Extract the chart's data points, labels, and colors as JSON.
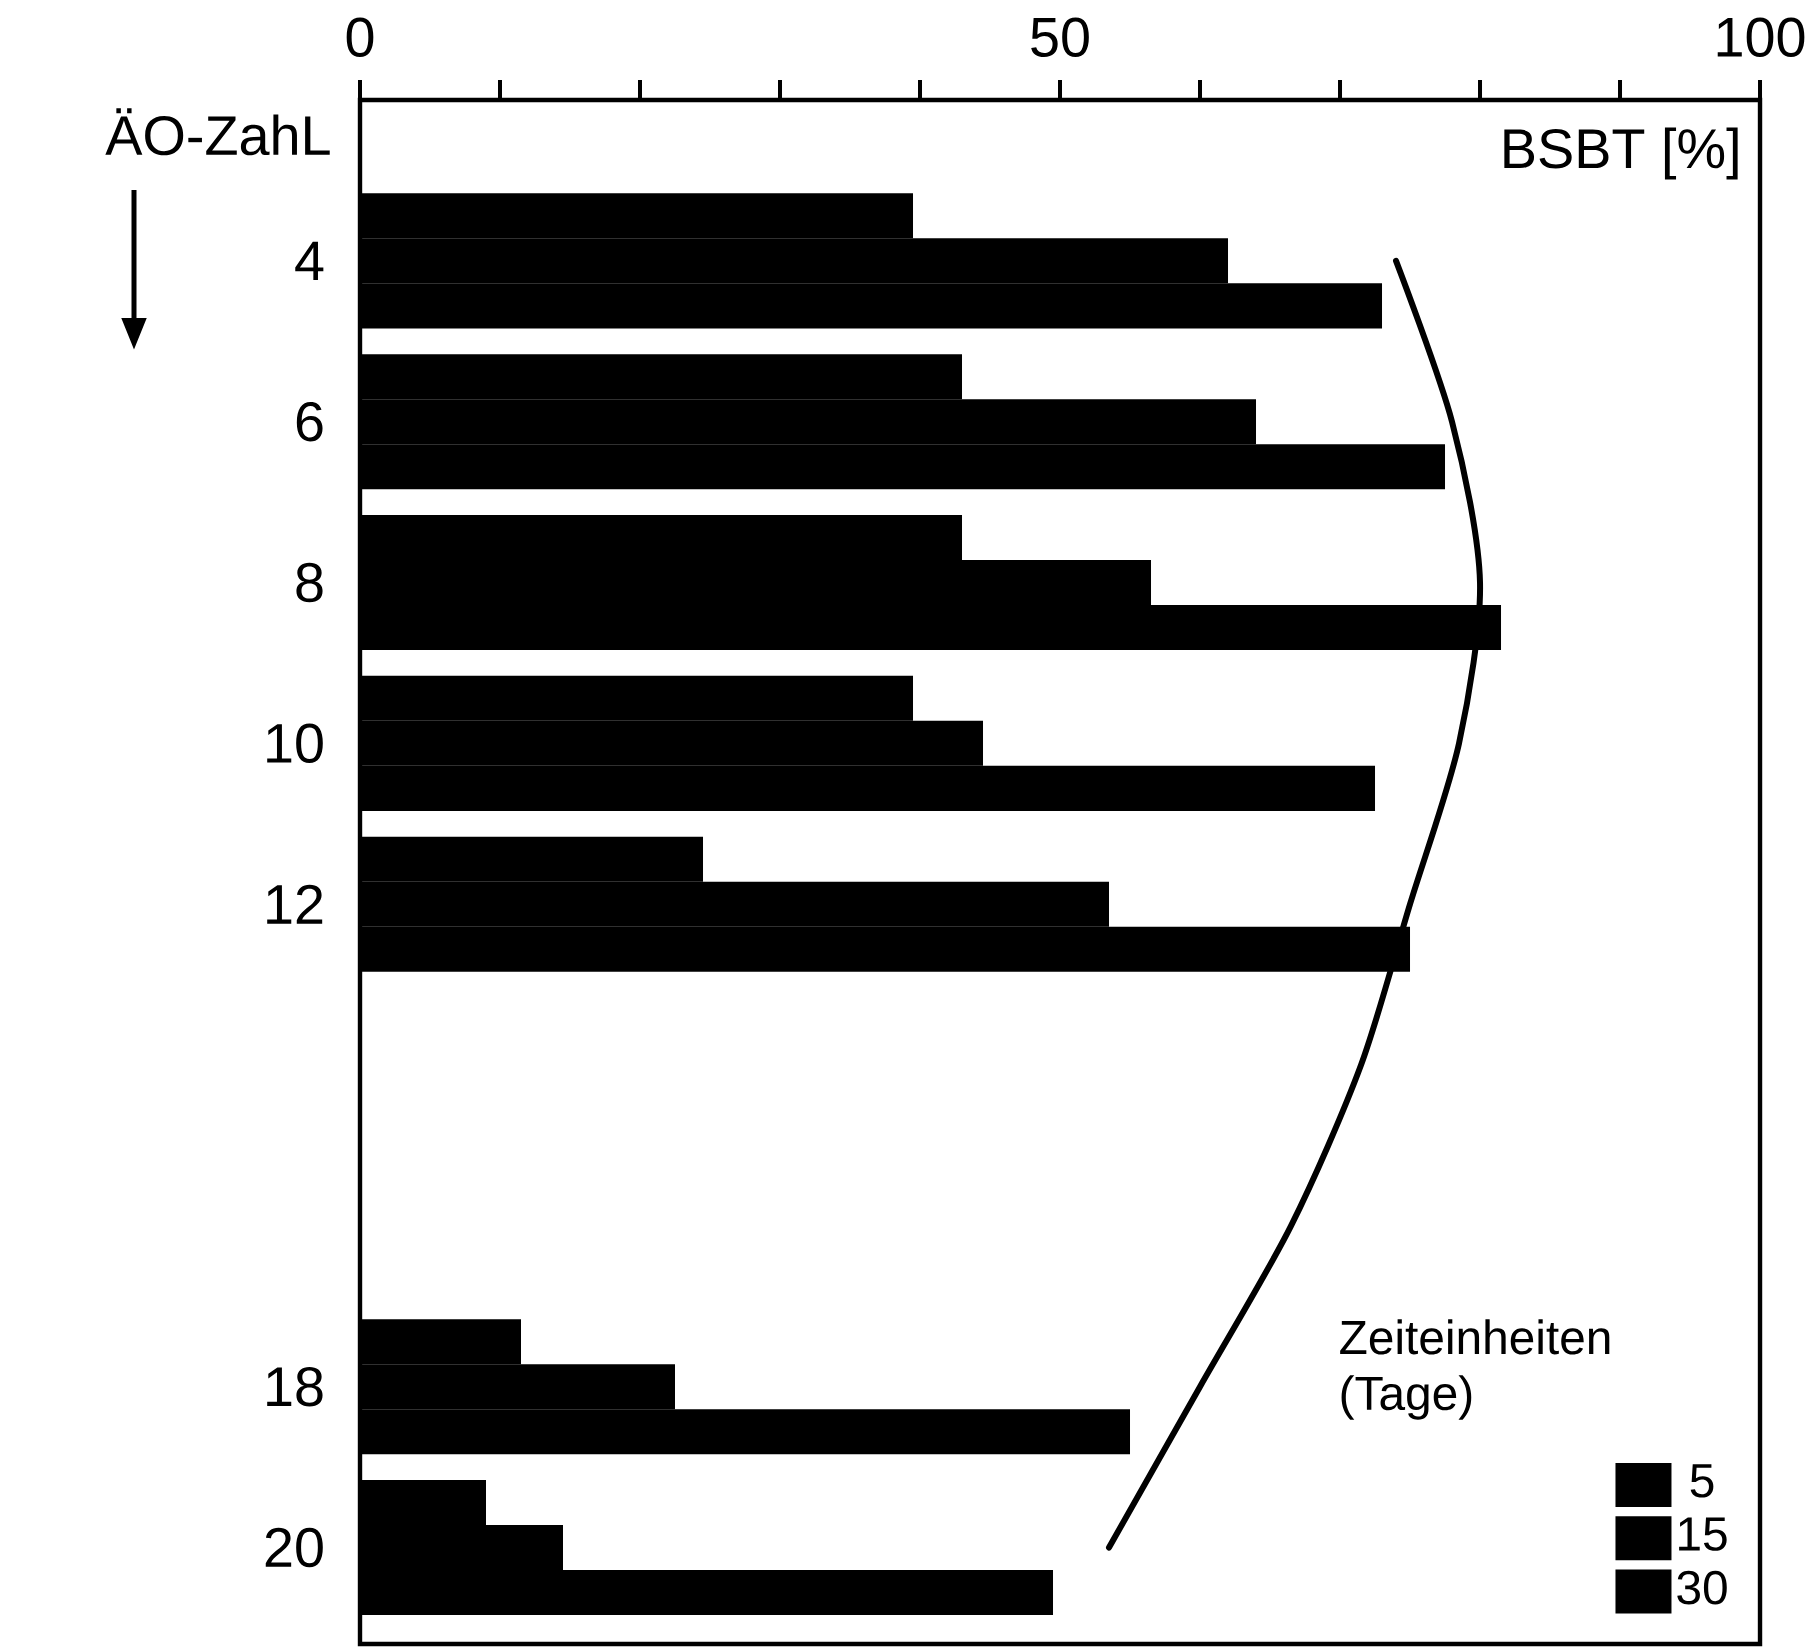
{
  "chart_data": {
    "type": "bar",
    "orientation": "horizontal",
    "xlabel": "BSBT [%]",
    "ylabel": "ÄO-ZahL",
    "legend_title": "Zeiteinheiten (Tage)",
    "categories": [
      "4",
      "6",
      "8",
      "10",
      "12",
      null,
      null,
      "18",
      "20"
    ],
    "series": [
      {
        "name": "5",
        "color": "#000000",
        "values": [
          39.5,
          43,
          43,
          39.5,
          24.5,
          null,
          null,
          11.5,
          9
        ]
      },
      {
        "name": "15",
        "color": "#000000",
        "values": [
          62,
          64,
          56.5,
          44.5,
          53.5,
          null,
          null,
          22.5,
          14.5
        ]
      },
      {
        "name": "30",
        "color": "#000000",
        "values": [
          73,
          77.5,
          81.5,
          72.5,
          75,
          null,
          null,
          55,
          49.5
        ]
      },
      {
        "type": "line",
        "color": "#000000",
        "marker": "none",
        "values": [
          74,
          78,
          80,
          78.5,
          75,
          71.5,
          66.5,
          60,
          53.5
        ]
      }
    ],
    "xlim": [
      0,
      100
    ],
    "xticks": [
      0,
      {
        "value": 10,
        "label": null
      },
      {
        "value": 20,
        "label": null
      },
      {
        "value": 30,
        "label": null
      },
      {
        "value": 40,
        "label": null
      },
      50,
      {
        "value": 60,
        "label": null
      },
      {
        "value": 70,
        "label": null
      },
      {
        "value": 80,
        "label": null
      },
      {
        "value": 90,
        "label": null
      },
      100
    ],
    "legend": "bottom right"
  }
}
